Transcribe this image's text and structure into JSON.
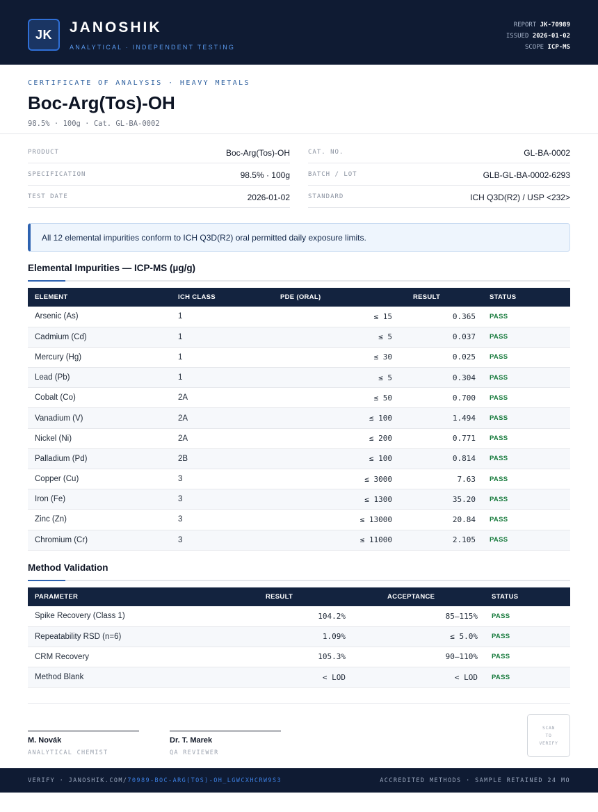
{
  "header": {
    "logo": "JK",
    "brand": "JANOSHIK",
    "tagline": "ANALYTICAL · INDEPENDENT TESTING",
    "report_label": "REPORT",
    "report_value": "JK-70989",
    "issued_label": "ISSUED",
    "issued_value": "2026-01-02",
    "scope_label": "SCOPE",
    "scope_value": "ICP-MS"
  },
  "title_block": {
    "kicker": "CERTIFICATE OF ANALYSIS · HEAVY METALS",
    "title": "Boc-Arg(Tos)-OH",
    "subtitle": "98.5% · 100g  ·  Cat. GL-BA-0002"
  },
  "info": {
    "left": [
      {
        "label": "PRODUCT",
        "value": "Boc-Arg(Tos)-OH"
      },
      {
        "label": "SPECIFICATION",
        "value": "98.5% · 100g"
      },
      {
        "label": "TEST DATE",
        "value": "2026-01-02"
      }
    ],
    "right": [
      {
        "label": "CAT. NO.",
        "value": "GL-BA-0002"
      },
      {
        "label": "BATCH / LOT",
        "value": "GLB-GL-BA-0002-6293"
      },
      {
        "label": "STANDARD",
        "value": "ICH Q3D(R2) / USP <232>"
      }
    ]
  },
  "notice": "All 12 elemental impurities conform to ICH Q3D(R2) oral permitted daily exposure limits.",
  "impurities": {
    "title": "Elemental Impurities — ICP-MS (µg/g)",
    "headers": [
      "ELEMENT",
      "ICH CLASS",
      "PDE (ORAL)",
      "RESULT",
      "STATUS"
    ],
    "rows": [
      [
        "Arsenic (As)",
        "1",
        "≤ 15",
        "0.365",
        "PASS"
      ],
      [
        "Cadmium (Cd)",
        "1",
        "≤ 5",
        "0.037",
        "PASS"
      ],
      [
        "Mercury (Hg)",
        "1",
        "≤ 30",
        "0.025",
        "PASS"
      ],
      [
        "Lead (Pb)",
        "1",
        "≤ 5",
        "0.304",
        "PASS"
      ],
      [
        "Cobalt (Co)",
        "2A",
        "≤ 50",
        "0.700",
        "PASS"
      ],
      [
        "Vanadium (V)",
        "2A",
        "≤ 100",
        "1.494",
        "PASS"
      ],
      [
        "Nickel (Ni)",
        "2A",
        "≤ 200",
        "0.771",
        "PASS"
      ],
      [
        "Palladium (Pd)",
        "2B",
        "≤ 100",
        "0.814",
        "PASS"
      ],
      [
        "Copper (Cu)",
        "3",
        "≤ 3000",
        "7.63",
        "PASS"
      ],
      [
        "Iron (Fe)",
        "3",
        "≤ 1300",
        "35.20",
        "PASS"
      ],
      [
        "Zinc (Zn)",
        "3",
        "≤ 13000",
        "20.84",
        "PASS"
      ],
      [
        "Chromium (Cr)",
        "3",
        "≤ 11000",
        "2.105",
        "PASS"
      ]
    ]
  },
  "validation": {
    "title": "Method Validation",
    "headers": [
      "PARAMETER",
      "RESULT",
      "ACCEPTANCE",
      "STATUS"
    ],
    "rows": [
      [
        "Spike Recovery (Class 1)",
        "104.2%",
        "85–115%",
        "PASS"
      ],
      [
        "Repeatability RSD (n=6)",
        "1.09%",
        "≤ 5.0%",
        "PASS"
      ],
      [
        "CRM Recovery",
        "105.3%",
        "90–110%",
        "PASS"
      ],
      [
        "Method Blank",
        "< LOD",
        "< LOD",
        "PASS"
      ]
    ]
  },
  "signatures": [
    {
      "name": "M. Novák",
      "role": "ANALYTICAL CHEMIST"
    },
    {
      "name": "Dr. T. Marek",
      "role": "QA REVIEWER"
    }
  ],
  "qr": {
    "line1": "SCAN",
    "line2": "TO",
    "line3": "VERIFY"
  },
  "footer": {
    "verify_prefix": "VERIFY · JANOSHIK.COM/",
    "verify_code": "70989-BOC-ARG(TOS)-OH_LGWCXHCRW9S3",
    "right": "ACCREDITED METHODS · SAMPLE RETAINED 24 MO"
  },
  "colors": {
    "navy": "#0f1b33",
    "accent": "#2d62b0",
    "pass": "#177a3c"
  }
}
